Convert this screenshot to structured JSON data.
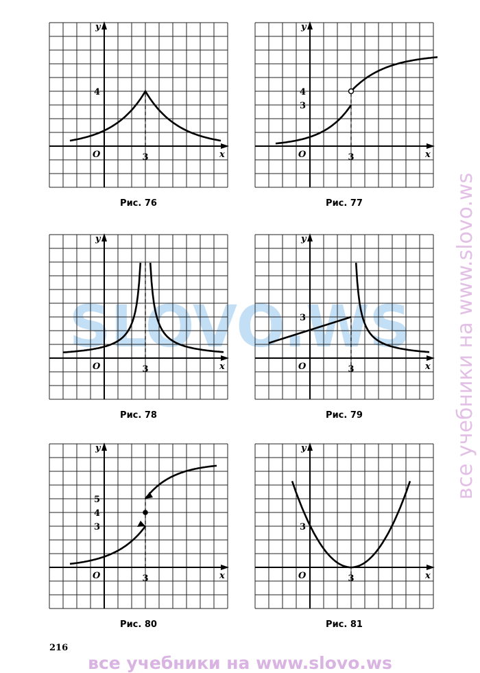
{
  "figures": [
    {
      "caption": "Рис. 76",
      "x_label": "x",
      "y_label": "y",
      "origin": "O",
      "x_ticks": [
        "3"
      ],
      "y_ticks": [
        "4"
      ]
    },
    {
      "caption": "Рис. 77",
      "x_label": "x",
      "y_label": "y",
      "origin": "O",
      "x_ticks": [
        "3"
      ],
      "y_ticks": [
        "4",
        "3"
      ]
    },
    {
      "caption": "Рис. 78",
      "x_label": "x",
      "y_label": "y",
      "origin": "O",
      "x_ticks": [
        "3"
      ]
    },
    {
      "caption": "Рис. 79",
      "x_label": "x",
      "y_label": "y",
      "origin": "O",
      "x_ticks": [
        "3"
      ],
      "y_ticks": [
        "3"
      ]
    },
    {
      "caption": "Рис. 80",
      "x_label": "x",
      "y_label": "y",
      "origin": "O",
      "x_ticks": [
        "3"
      ],
      "y_ticks": [
        "5",
        "4",
        "3"
      ]
    },
    {
      "caption": "Рис. 81",
      "x_label": "x",
      "y_label": "y",
      "origin": "O",
      "x_ticks": [
        "3"
      ],
      "y_ticks": [
        "3"
      ]
    }
  ],
  "page_number": "216",
  "watermark_center": "SLOVO.WS",
  "watermark_side": "все учебники на www.slovo.ws",
  "watermark_bottom": "все учебники на www.slovo.ws"
}
